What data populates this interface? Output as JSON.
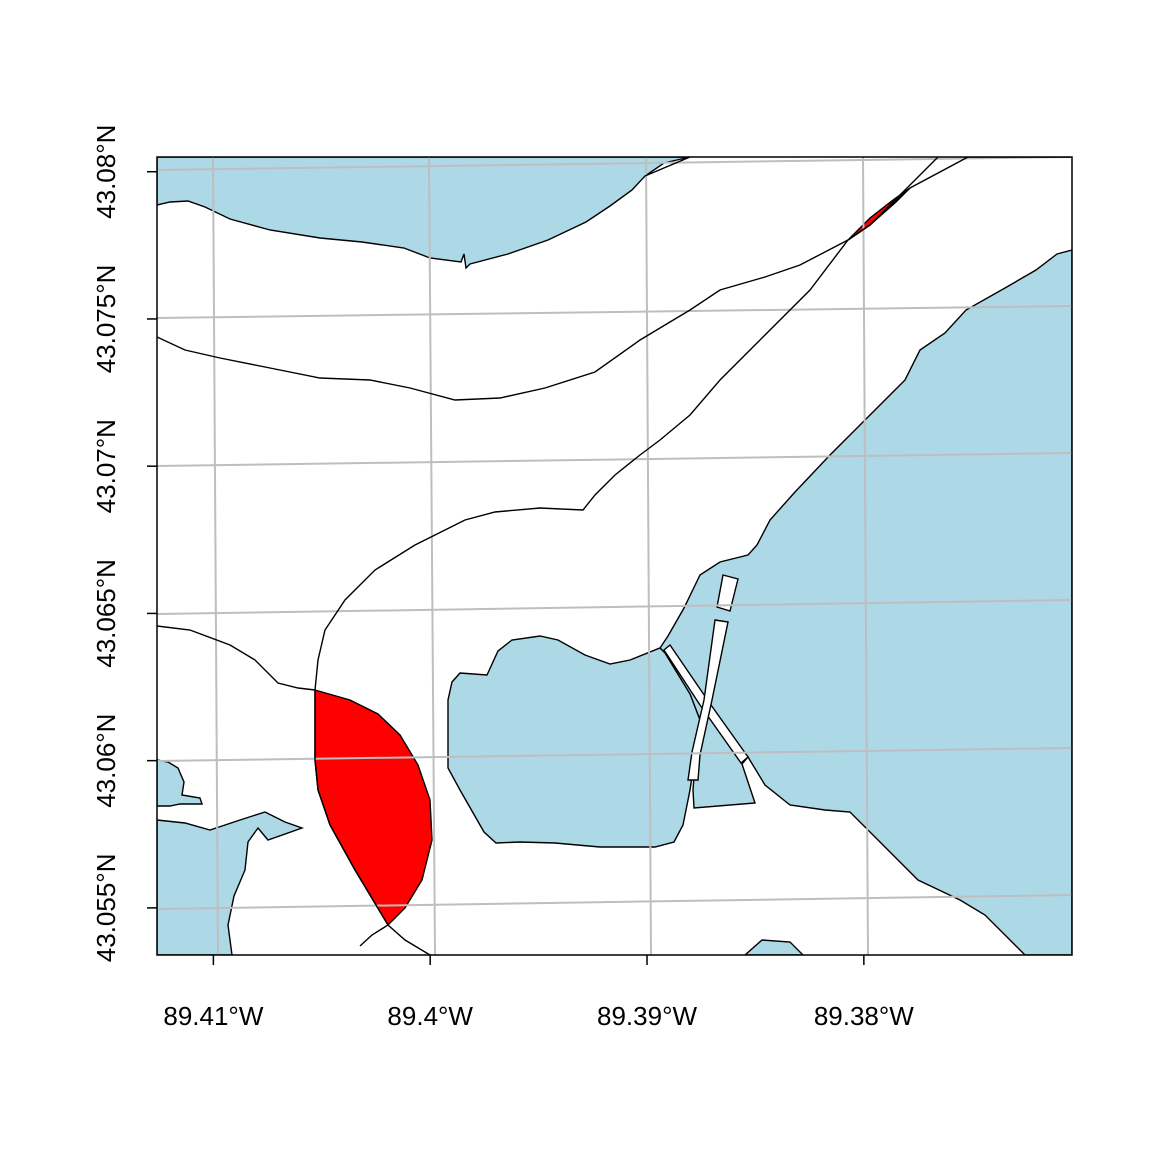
{
  "map": {
    "x_ticks": [
      "89.41°W",
      "89.4°W",
      "89.39°W",
      "89.38°W"
    ],
    "y_ticks": [
      "43.08°N",
      "43.075°N",
      "43.07°N",
      "43.065°N",
      "43.06°N",
      "43.055°N"
    ],
    "x_tick_values": [
      -89.41,
      -89.4,
      -89.39,
      -89.38
    ],
    "y_tick_values": [
      43.08,
      43.075,
      43.07,
      43.065,
      43.06,
      43.055
    ],
    "lon_range": [
      -89.4126,
      -89.3704
    ],
    "lat_range": [
      43.0534,
      43.0805
    ],
    "grid": true,
    "colors": {
      "water": "#add8e6",
      "highlight": "#ff0000",
      "grid": "#bebebe",
      "road": "#000000",
      "background": "#ffffff"
    }
  }
}
